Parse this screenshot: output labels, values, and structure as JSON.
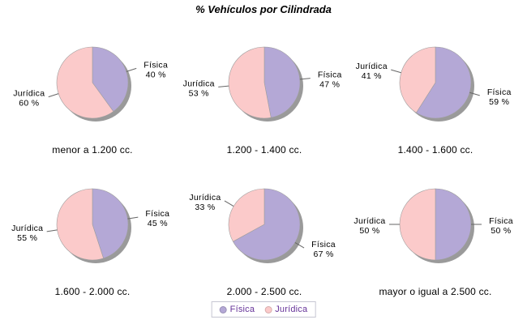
{
  "chart_data": {
    "type": "pie",
    "layout": "grid-2-rows-3-cols",
    "title": "% Vehículos por Cilindrada",
    "series": [
      "Física",
      "Jurídica"
    ],
    "value_suffix": " %",
    "pies": [
      {
        "title": "menor a 1.200 cc.",
        "values": [
          40,
          60
        ]
      },
      {
        "title": "1.200 - 1.400 cc.",
        "values": [
          47,
          53
        ]
      },
      {
        "title": "1.400 - 1.600 cc.",
        "values": [
          59,
          41
        ]
      },
      {
        "title": "1.600 - 2.000 cc.",
        "values": [
          45,
          55
        ]
      },
      {
        "title": "2.000 - 2.500 cc.",
        "values": [
          67,
          33
        ]
      },
      {
        "title": "mayor o igual a 2.500 cc.",
        "values": [
          50,
          50
        ]
      }
    ],
    "colors": {
      "Física": "#b4a8d6",
      "Jurídica": "#fbcaca",
      "shadow": "#9a9a9a",
      "leader_line": "#666666",
      "slice_outline": "#9e9e9e",
      "legend_text": "#663399",
      "legend_border": "#c6c6d2"
    },
    "legend": {
      "position": "bottom-center",
      "items": [
        "Física",
        "Jurídica"
      ]
    }
  }
}
